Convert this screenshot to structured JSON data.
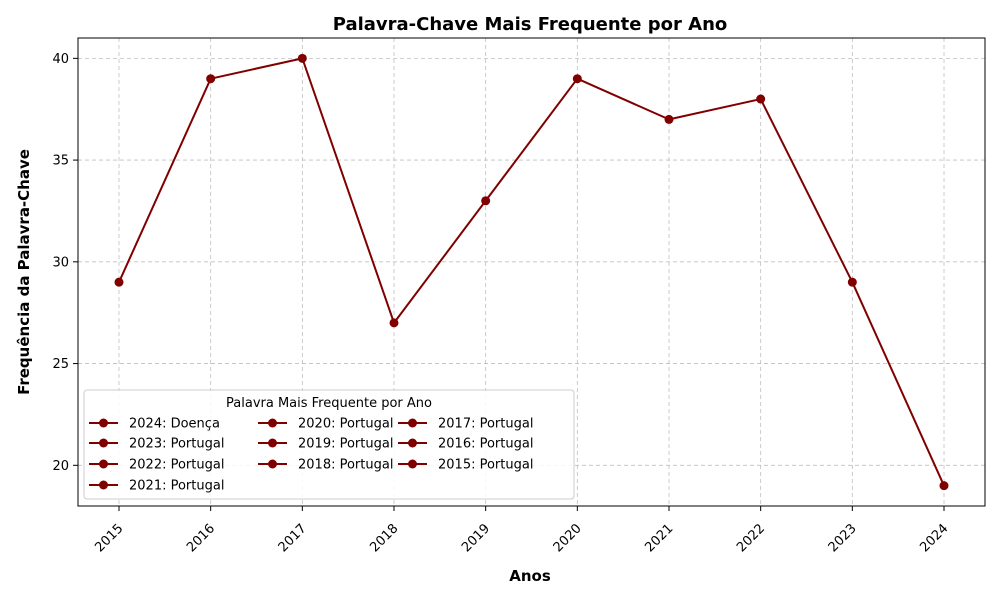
{
  "chart_data": {
    "type": "line",
    "title": "Palavra-Chave Mais Frequente por Ano",
    "xlabel": "Anos",
    "ylabel": "Frequência da Palavra-Chave",
    "x": [
      "2015",
      "2016",
      "2017",
      "2018",
      "2019",
      "2020",
      "2021",
      "2022",
      "2023",
      "2024"
    ],
    "series": [
      {
        "values": [
          29,
          39,
          40,
          27,
          33,
          39,
          37,
          38,
          29,
          19
        ]
      }
    ],
    "ylim": [
      18,
      41
    ],
    "yticks": [
      20,
      25,
      30,
      35,
      40
    ],
    "grid": true,
    "line_color": "#800000",
    "legend": {
      "title": "Palavra Mais Frequente por Ano",
      "placement": "lower-left",
      "entries": [
        "2024: Doença",
        "2023: Portugal",
        "2022: Portugal",
        "2021: Portugal",
        "2020: Portugal",
        "2019: Portugal",
        "2018: Portugal",
        "2017: Portugal",
        "2016: Portugal",
        "2015: Portugal"
      ]
    }
  }
}
